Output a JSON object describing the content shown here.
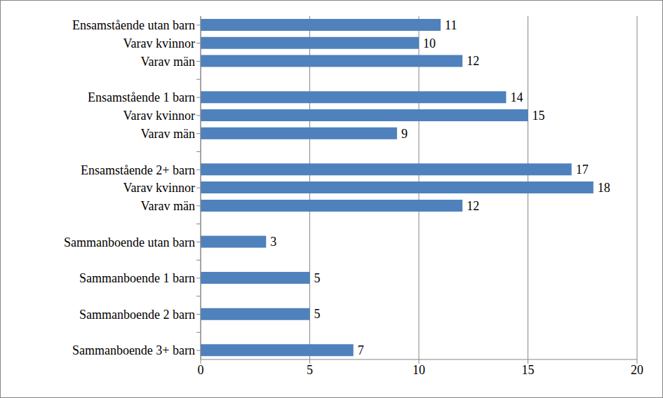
{
  "chart_data": {
    "type": "bar",
    "orientation": "horizontal",
    "categories": [
      "Ensamstående utan barn",
      "Varav kvinnor",
      "Varav män",
      null,
      "Ensamstående 1 barn",
      "Varav kvinnor",
      "Varav män",
      null,
      "Ensamstående 2+ barn",
      "Varav kvinnor",
      "Varav män",
      null,
      "Sammanboende utan barn",
      null,
      "Sammanboende 1 barn",
      null,
      "Sammanboende 2 barn",
      null,
      "Sammanboende 3+ barn"
    ],
    "values": [
      11,
      10,
      12,
      null,
      14,
      15,
      9,
      null,
      17,
      18,
      12,
      null,
      3,
      null,
      5,
      null,
      5,
      null,
      7
    ],
    "color": "#4f81bd",
    "xlim": [
      0,
      20
    ],
    "xticks": [
      0,
      5,
      10,
      15,
      20
    ],
    "grid": true,
    "data_labels": true
  }
}
